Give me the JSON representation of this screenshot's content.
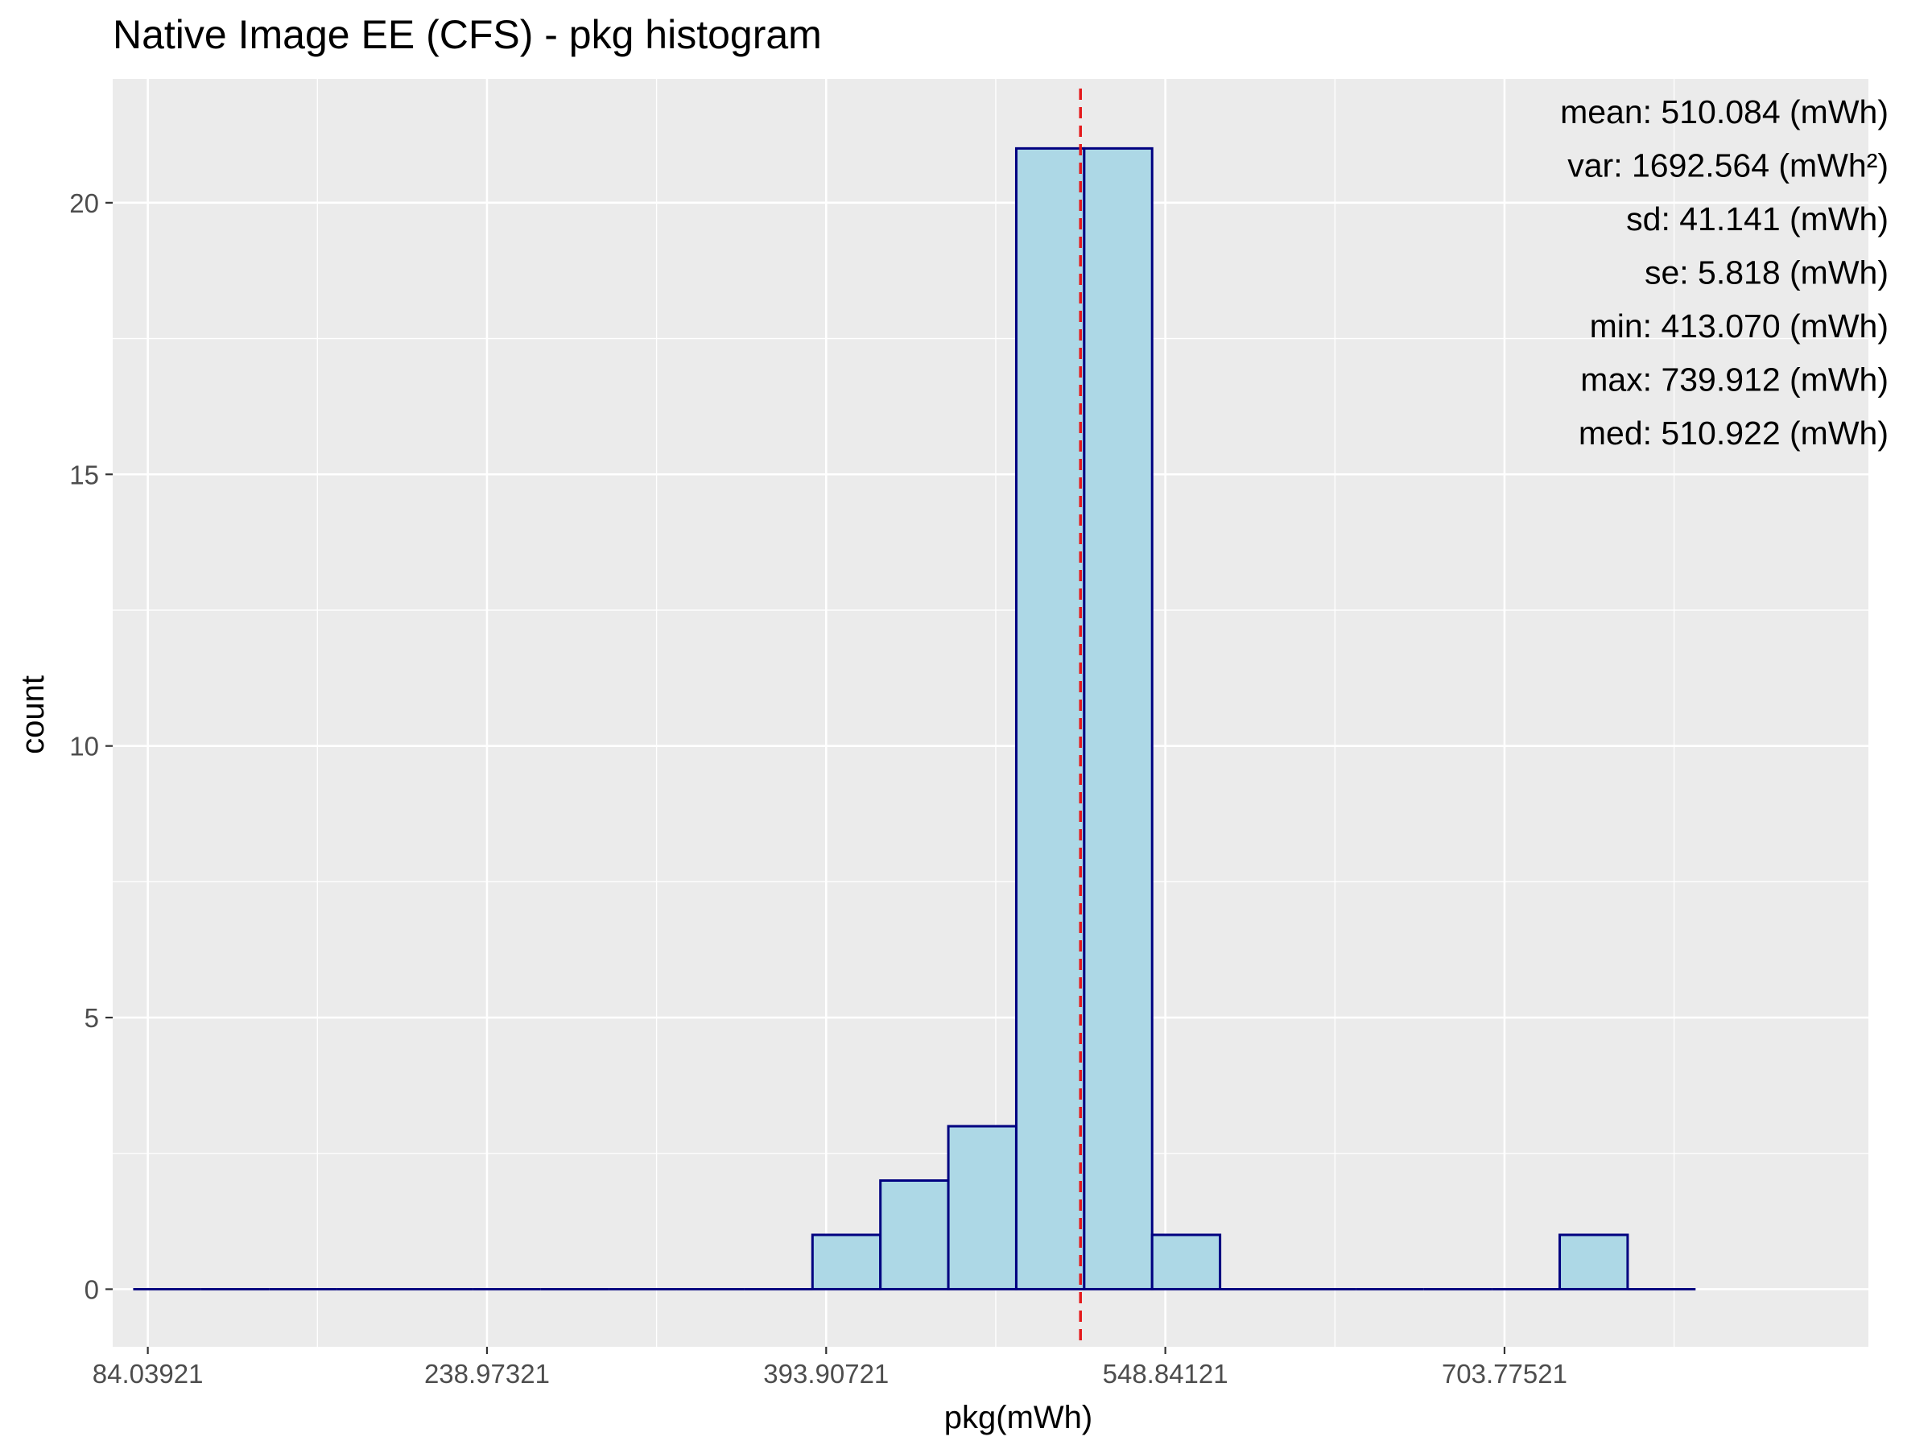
{
  "chart_data": {
    "type": "histogram",
    "title": "Native Image EE (CFS) - pkg histogram",
    "xlabel": "pkg(mWh)",
    "ylabel": "count",
    "xlim": [
      68,
      870
    ],
    "ylim": [
      -1.06,
      22.28
    ],
    "x_ticks": [
      84.03921,
      238.97321,
      393.90721,
      548.84121,
      703.77521
    ],
    "x_tick_labels": [
      "84.03921",
      "238.97321",
      "393.90721",
      "548.84121",
      "703.77521"
    ],
    "y_ticks": [
      0,
      5,
      10,
      15,
      20
    ],
    "y_tick_labels": [
      "0",
      "5",
      "10",
      "15",
      "20"
    ],
    "bins": [
      {
        "start": 77.36,
        "end": 108.39,
        "count": 0
      },
      {
        "start": 108.39,
        "end": 139.42,
        "count": 0
      },
      {
        "start": 139.42,
        "end": 170.45,
        "count": 0
      },
      {
        "start": 170.45,
        "end": 201.48,
        "count": 0
      },
      {
        "start": 201.48,
        "end": 232.51,
        "count": 0
      },
      {
        "start": 232.51,
        "end": 263.54,
        "count": 0
      },
      {
        "start": 263.54,
        "end": 294.57,
        "count": 0
      },
      {
        "start": 294.57,
        "end": 325.6,
        "count": 0
      },
      {
        "start": 325.6,
        "end": 356.63,
        "count": 0
      },
      {
        "start": 356.63,
        "end": 387.66,
        "count": 0
      },
      {
        "start": 387.66,
        "end": 418.69,
        "count": 1
      },
      {
        "start": 418.69,
        "end": 449.72,
        "count": 2
      },
      {
        "start": 449.72,
        "end": 480.75,
        "count": 3
      },
      {
        "start": 480.75,
        "end": 511.78,
        "count": 21
      },
      {
        "start": 511.78,
        "end": 542.81,
        "count": 21
      },
      {
        "start": 542.81,
        "end": 573.84,
        "count": 1
      },
      {
        "start": 573.84,
        "end": 604.87,
        "count": 0
      },
      {
        "start": 604.87,
        "end": 635.9,
        "count": 0
      },
      {
        "start": 635.9,
        "end": 666.93,
        "count": 0
      },
      {
        "start": 666.93,
        "end": 697.96,
        "count": 0
      },
      {
        "start": 697.96,
        "end": 728.99,
        "count": 0
      },
      {
        "start": 728.99,
        "end": 760.02,
        "count": 1
      },
      {
        "start": 760.02,
        "end": 791.05,
        "count": 0
      }
    ],
    "mean_line": {
      "x": 510.084,
      "color": "#e41a1c",
      "style": "dashed"
    },
    "grid": true,
    "legend": "none",
    "stats": [
      "mean: 510.084 (mWh)",
      "var: 1692.564 (mWh²)",
      "sd: 41.141 (mWh)",
      "se: 5.818 (mWh)",
      "min: 413.070 (mWh)",
      "max: 739.912 (mWh)",
      "med: 510.922 (mWh)"
    ],
    "colors": {
      "bar_fill": "#add8e6",
      "bar_outline": "#000080",
      "panel_background": "#ebebeb",
      "grid": "#ffffff"
    }
  }
}
